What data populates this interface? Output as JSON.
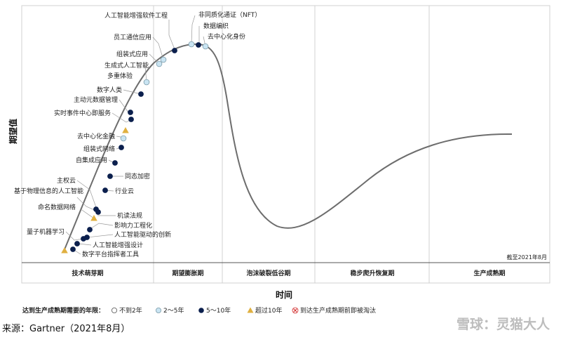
{
  "diagram": {
    "y_axis_label": "期望值",
    "x_axis_label": "时间",
    "as_of_note": "截至2021年8月",
    "phases": [
      "技术萌芽期",
      "期望膨胀期",
      "泡沫破裂低谷期",
      "稳步爬升恢复期",
      "生产成熟期"
    ],
    "technologies": [
      {
        "label": "人工智能增强软件工程",
        "category": "5-10"
      },
      {
        "label": "非同质化通证（NFT）",
        "category": "2-5"
      },
      {
        "label": "数据编织",
        "category": "5-10"
      },
      {
        "label": "去中心化身份",
        "category": "2-5"
      },
      {
        "label": "员工通信应用",
        "category": "2-5"
      },
      {
        "label": "组装式应用",
        "category": "2-5"
      },
      {
        "label": "生成式人工智能",
        "category": "2-5"
      },
      {
        "label": "多重体验",
        "category": "5-10"
      },
      {
        "label": "数字人类",
        "category": "5-10"
      },
      {
        "label": "主动元数据管理",
        "category": "5-10"
      },
      {
        "label": "实时事件中心即服务",
        "category": "10+"
      },
      {
        "label": "去中心化金融",
        "category": "2-5"
      },
      {
        "label": "组装式网络",
        "category": "5-10"
      },
      {
        "label": "自集成应用",
        "category": "5-10"
      },
      {
        "label": "同态加密",
        "category": "5-10"
      },
      {
        "label": "主权云",
        "category": "5-10"
      },
      {
        "label": "行业云",
        "category": "5-10"
      },
      {
        "label": "基于物理信息的人工智能",
        "category": "5-10"
      },
      {
        "label": "命名数据网络",
        "category": "10+"
      },
      {
        "label": "机读法规",
        "category": "5-10"
      },
      {
        "label": "影响力工程化",
        "category": "5-10"
      },
      {
        "label": "人工智能驱动的创新",
        "category": "5-10"
      },
      {
        "label": "量子机器学习",
        "category": "10+"
      },
      {
        "label": "人工智能增强设计",
        "category": "5-10"
      },
      {
        "label": "数字平台指挥者工具",
        "category": "5-10"
      }
    ]
  },
  "legend": {
    "title": "达到生产成熟期需要的年限：",
    "items": [
      {
        "key": "lt2",
        "label": "不到2年"
      },
      {
        "key": "2-5",
        "label": "2～5年"
      },
      {
        "key": "5-10",
        "label": "5～10年"
      },
      {
        "key": "10+",
        "label": "超过10年"
      },
      {
        "key": "obsolete",
        "label": "到达生产成熟期前即被淘汰"
      }
    ]
  },
  "source": "来源：Gartner（2021年8月）",
  "watermark": "雪球：灵猫大人",
  "colors": {
    "light": "#c9e4f2",
    "dark": "#0b1f4d",
    "gold": "#e0b040",
    "red": "#d32f2f",
    "curve": "#6d6d6d",
    "divider": "#d0d0d0"
  }
}
